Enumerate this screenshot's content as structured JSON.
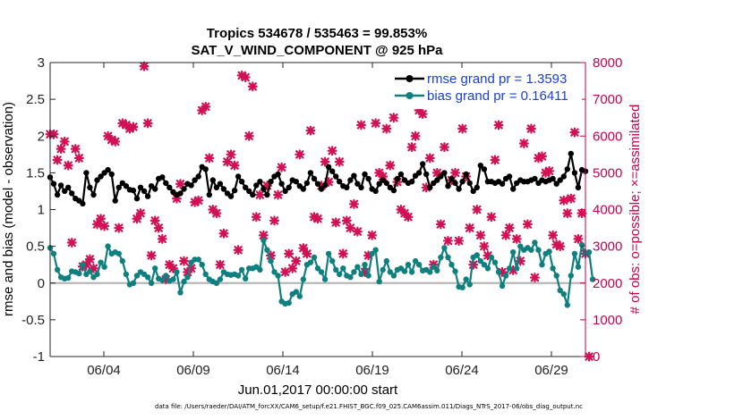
{
  "chart_data": {
    "type": "line",
    "title": "Tropics 534678 / 535463 = 99.853%",
    "subtitle": "SAT_V_WIND_COMPONENT @ 925 hPa",
    "xlabel": "Jun.01,2017 00:00:00 start",
    "ylabel": "rmse and bias (model - observation)",
    "y2label": "# of obs: o=possible; ×=assimilated",
    "footnote": "data file: /Users/raeder/DAI/ATM_forcXX/CAM6_setup/f.e21.FHIST_BGC.f09_025.CAM6assim.011/Diags_NTrS_2017-06/obs_diag_output.nc",
    "x_ticks": [
      "06/04",
      "06/09",
      "06/14",
      "06/19",
      "06/24",
      "06/29"
    ],
    "x_tick_days": [
      4,
      9,
      14,
      19,
      24,
      29
    ],
    "xlim": [
      1.0,
      30.9
    ],
    "ylim": [
      -1,
      3
    ],
    "y_ticks": [
      "-1",
      "-0.5",
      "0",
      "0.5",
      "1",
      "1.5",
      "2",
      "2.5",
      "3"
    ],
    "y_tick_values": [
      -1,
      -0.5,
      0,
      0.5,
      1,
      1.5,
      2,
      2.5,
      3
    ],
    "y2lim": [
      0,
      8000
    ],
    "y2_ticks": [
      "0",
      "1000",
      "2000",
      "3000",
      "4000",
      "5000",
      "6000",
      "7000",
      "8000"
    ],
    "y2_tick_values": [
      0,
      1000,
      2000,
      3000,
      4000,
      5000,
      6000,
      7000,
      8000
    ],
    "legend": [
      "rmse grand pr = 1.3593",
      "bias grand pr = 0.16411"
    ],
    "legend_position": "top-right",
    "colors": {
      "rmse": "#000000",
      "bias": "#0f7f7f",
      "obs": "#d21054",
      "zero_line": "#b0b0b0",
      "axis_right": "#c9004d",
      "legend_text": "#1a3fd8"
    },
    "series": [
      {
        "name": "rmse",
        "values": [
          1.44,
          1.35,
          1.2,
          1.33,
          1.25,
          1.3,
          1.22,
          1.15,
          1.12,
          1.08,
          1.5,
          1.3,
          1.2,
          1.4,
          1.45,
          1.5,
          1.54,
          1.48,
          1.12,
          1.3,
          1.36,
          1.32,
          1.27,
          1.26,
          1.15,
          1.3,
          1.25,
          1.18,
          1.32,
          1.28,
          1.42,
          1.44,
          1.36,
          1.3,
          1.24,
          1.2,
          1.22,
          1.28,
          1.35,
          1.33,
          1.4,
          1.45,
          1.58,
          1.55,
          1.2,
          1.4,
          1.3,
          1.35,
          1.28,
          1.22,
          1.18,
          1.26,
          1.45,
          1.38,
          1.3,
          1.25,
          1.2,
          1.33,
          1.38,
          1.28,
          1.2,
          1.38,
          1.45,
          1.48,
          1.35,
          1.25,
          1.3,
          1.4,
          1.38,
          1.32,
          1.28,
          1.36,
          1.5,
          1.42,
          1.35,
          1.28,
          1.33,
          1.58,
          1.52,
          1.45,
          1.38,
          1.32,
          1.3,
          1.4,
          1.46,
          1.35,
          1.3,
          1.48,
          1.42,
          1.28,
          1.25,
          1.35,
          1.4,
          1.36,
          1.3,
          1.26,
          1.42,
          1.48,
          1.4,
          1.36,
          1.38,
          1.46,
          1.5,
          1.62,
          1.48,
          1.3,
          1.36,
          1.4,
          1.45,
          1.5,
          1.32,
          1.42,
          1.36,
          1.28,
          1.38,
          1.48,
          1.36,
          1.25,
          1.3,
          1.6,
          1.55,
          1.38,
          1.38,
          1.36,
          1.38,
          1.35,
          1.42,
          1.45,
          1.28,
          1.36,
          1.4,
          1.38,
          1.38,
          1.4,
          1.42,
          1.36,
          1.4,
          1.38,
          1.4,
          1.42,
          1.35,
          1.4,
          1.45,
          1.55,
          1.76,
          1.5,
          1.3,
          1.54,
          1.52
        ]
      },
      {
        "name": "bias",
        "values": [
          0.48,
          0.4,
          0.18,
          0.08,
          0.06,
          0.07,
          0.16,
          0.15,
          0.13,
          0.25,
          0.12,
          0.16,
          0.08,
          0.12,
          0.28,
          0.22,
          0.5,
          0.4,
          0.42,
          0.4,
          0.3,
          0.12,
          -0.02,
          0.0,
          0.1,
          0.15,
          0.12,
          0.08,
          0.0,
          0.2,
          0.06,
          0.04,
          0.1,
          0.03,
          0.05,
          0.15,
          -0.13,
          0.02,
          0.08,
          0.28,
          0.32,
          0.32,
          0.25,
          0.12,
          0.05,
          0.02,
          0.0,
          0.05,
          0.15,
          0.12,
          0.11,
          0.12,
          0.1,
          0.18,
          0.06,
          0.2,
          0.2,
          0.22,
          0.18,
          0.58,
          0.45,
          0.3,
          0.15,
          0.1,
          -0.25,
          -0.28,
          -0.27,
          -0.15,
          -0.12,
          -0.18,
          0.05,
          0.25,
          0.28,
          0.35,
          0.2,
          0.15,
          0.05,
          0.4,
          0.3,
          0.18,
          0.12,
          0.2,
          0.1,
          0.08,
          0.15,
          0.22,
          0.12,
          0.25,
          0.1,
          0.4,
          0.45,
          0.02,
          0.18,
          0.3,
          0.15,
          0.1,
          0.18,
          0.2,
          0.16,
          0.25,
          0.15,
          0.3,
          0.25,
          0.17,
          0.18,
          0.15,
          0.22,
          0.17,
          0.35,
          0.48,
          0.35,
          0.25,
          0.16,
          -0.05,
          -0.06,
          0.05,
          -0.02,
          0.35,
          0.38,
          0.3,
          0.25,
          0.2,
          0.35,
          0.28,
          0.15,
          -0.04,
          0.1,
          0.2,
          0.42,
          0.2,
          0.5,
          0.45,
          0.48,
          0.45,
          0.55,
          0.45,
          0.25,
          0.4,
          0.43,
          0.2,
          0.1,
          -0.1,
          -0.15,
          -0.3,
          0.1,
          0.4,
          0.22,
          0.52,
          0.4,
          0.42,
          0.05
        ]
      },
      {
        "name": "obs",
        "marker": "x",
        "values": [
          6050,
          6050,
          5350,
          5650,
          5850,
          5200,
          3100,
          5650,
          5400,
          2450,
          2500,
          2650,
          2400,
          3600,
          3750,
          3550,
          6000,
          5900,
          5850,
          3500,
          6350,
          6300,
          6200,
          6250,
          3750,
          3900,
          7900,
          6350,
          2750,
          3700,
          3500,
          3200,
          2100,
          2500,
          2400,
          4300,
          4700,
          2600,
          2300,
          2400,
          4200,
          4250,
          6700,
          6800,
          5400,
          4000,
          3900,
          2500,
          3350,
          5300,
          5500,
          5200,
          2900,
          7650,
          7600,
          6000,
          7350,
          3800,
          4400,
          3300,
          4650,
          2750,
          3700,
          4400,
          5150,
          2300,
          2800,
          2400,
          2600,
          5500,
          2950,
          2800,
          6150,
          3800,
          3750,
          4650,
          5300,
          4750,
          5600,
          3650,
          5300,
          2800,
          3700,
          3500,
          4150,
          3400,
          6300,
          2300,
          2750,
          3300,
          6350,
          5000,
          4900,
          6200,
          5200,
          6500,
          4750,
          4000,
          3900,
          3800,
          5700,
          6000,
          6700,
          6600,
          4600,
          5400,
          2500,
          5000,
          3600,
          5700,
          3150,
          4800,
          5000,
          3150,
          6200,
          4900,
          3500,
          2500,
          4000,
          3300,
          3000,
          2750,
          3800,
          5350,
          6300,
          2300,
          3300,
          3500,
          2350,
          3200,
          2600,
          5800,
          3600,
          6200,
          2150,
          5400,
          5450,
          5000,
          5050,
          3300,
          3050,
          3000,
          4250,
          3900,
          4300,
          6100,
          3200,
          3900,
          2800,
          0
        ]
      }
    ]
  }
}
